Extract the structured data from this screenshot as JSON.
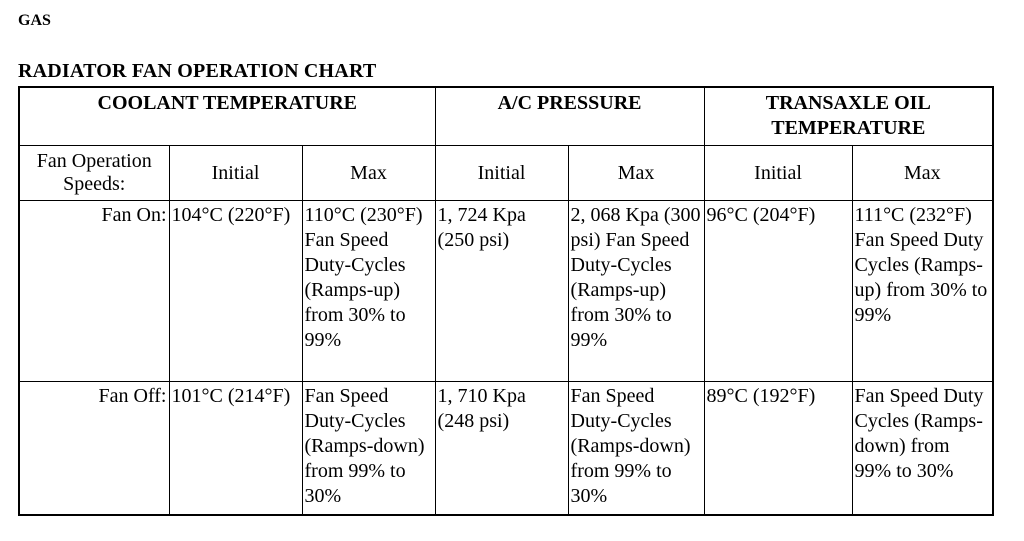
{
  "header": {
    "section": "GAS",
    "title": "RADIATOR FAN OPERATION CHART"
  },
  "table": {
    "groups": [
      "COOLANT TEMPERATURE",
      "A/C PRESSURE",
      "TRANSAXLE OIL TEMPERATURE"
    ],
    "sub_headers": [
      "Fan Operation Speeds:",
      "Initial",
      "Max",
      "Initial",
      "Max",
      "Initial",
      "Max"
    ],
    "rows": [
      {
        "label": "Fan On:",
        "cells": [
          "104°C (220°F)",
          "110°C (230°F) Fan Speed Duty-Cycles (Ramps-up) from 30% to 99%",
          "1, 724 Kpa (250 psi)",
          "2, 068 Kpa (300 psi) Fan Speed Duty-Cycles (Ramps-up) from 30% to 99%",
          "96°C (204°F)",
          "111°C (232°F) Fan Speed Duty Cycles (Ramps-up) from 30% to 99%"
        ]
      },
      {
        "label": "Fan Off:",
        "cells": [
          "101°C (214°F)",
          "Fan Speed Duty-Cycles (Ramps-down) from 99% to 30%",
          "1, 710 Kpa (248 psi)",
          "Fan Speed Duty-Cycles (Ramps-down) from 99% to 30%",
          "89°C (192°F)",
          "Fan Speed Duty Cycles (Ramps-down) from 99% to 30%"
        ]
      }
    ]
  }
}
